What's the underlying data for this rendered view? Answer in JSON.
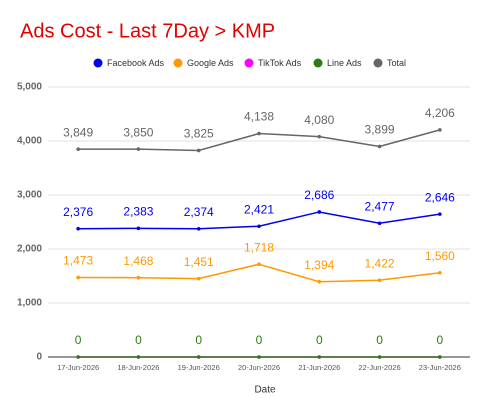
{
  "chart_data": {
    "type": "line",
    "title": "Ads Cost - Last 7Day > KMP",
    "x_label": "Date",
    "categories": [
      "17-Jun-2026",
      "18-Jun-2026",
      "19-Jun-2026",
      "20-Jun-2026",
      "21-Jun-2026",
      "22-Jun-2026",
      "23-Jun-2026"
    ],
    "ylim": [
      0,
      5000
    ],
    "yticks": [
      0,
      {
        "value": 1000,
        "label": "1,000"
      },
      {
        "value": 2000,
        "label": "2,000"
      },
      {
        "value": 3000,
        "label": "3,000"
      },
      {
        "value": 4000,
        "label": "4,000"
      },
      {
        "value": 5000,
        "label": "5,000"
      }
    ],
    "grid": true,
    "legend": "top",
    "series": [
      {
        "name": "Facebook Ads",
        "color": "#0000ee",
        "values": [
          2376,
          2383,
          2374,
          2421,
          2686,
          2477,
          2646
        ],
        "value_labels": [
          "2,376",
          "2,383",
          "2,374",
          "2,421",
          "2,686",
          "2,477",
          "2,646"
        ]
      },
      {
        "name": "Google Ads",
        "color": "#ff9900",
        "values": [
          1473,
          1468,
          1451,
          1718,
          1394,
          1422,
          1560
        ],
        "value_labels": [
          "1,473",
          "1,468",
          "1,451",
          "1,718",
          "1,394",
          "1,422",
          "1,560"
        ]
      },
      {
        "name": "TikTok Ads",
        "color": "#ff00ff",
        "values": [
          0,
          0,
          0,
          0,
          0,
          0,
          0
        ],
        "data_labels": false
      },
      {
        "name": "Line Ads",
        "color": "#2e7d12",
        "values": [
          0,
          0,
          0,
          0,
          0,
          0,
          0
        ]
      },
      {
        "name": "Total",
        "color": "#666666",
        "values": [
          3849,
          3850,
          3825,
          4138,
          4080,
          3899,
          4206
        ],
        "value_labels": [
          "3,849",
          "3,850",
          "3,825",
          "4,138",
          "4,080",
          "3,899",
          "4,206"
        ]
      }
    ]
  }
}
